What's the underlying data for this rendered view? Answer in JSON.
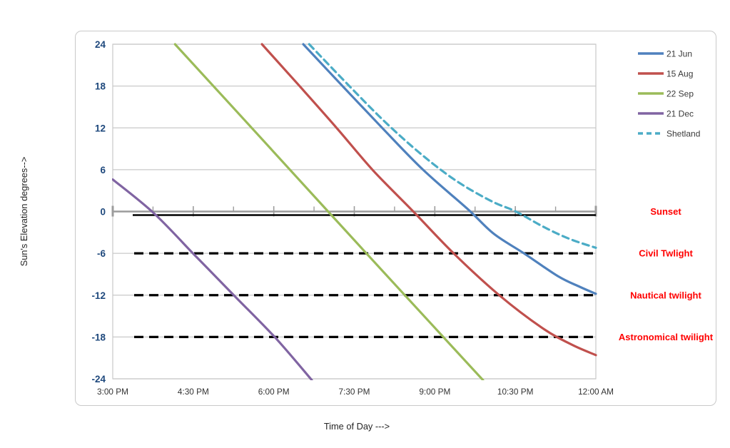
{
  "chart": {
    "y_axis_title": "Sun's Elevation degrees-->",
    "x_axis_title": "Time of Day --->",
    "y_tick_labels": [
      "24",
      "18",
      "12",
      "6",
      "0",
      "-6",
      "-12",
      "-18",
      "-24"
    ],
    "x_tick_labels": [
      "3:00 PM",
      "4:30 PM",
      "6:00 PM",
      "7:30 PM",
      "9:00 PM",
      "10:30 PM",
      "12:00 AM"
    ],
    "colors": {
      "y_tick_label": "#1F497D",
      "x_tick_label": "#333333",
      "axis_line": "#9C9C9C",
      "gridline": "#C9C9C9",
      "annotation": "#FF0000",
      "frame_border": "#C9C9C9"
    }
  },
  "chart_data": {
    "type": "line",
    "title": "",
    "xlabel": "Time of Day --->",
    "ylabel": "Sun's Elevation degrees-->",
    "x_unit": "hours after 3:00 PM",
    "xlim": [
      0,
      9
    ],
    "ylim": [
      -24,
      24
    ],
    "x_tick_positions": [
      0,
      1.5,
      3,
      4.5,
      6,
      7.5,
      9
    ],
    "x_tick_times": [
      "3:00 PM",
      "4:30 PM",
      "6:00 PM",
      "7:30 PM",
      "9:00 PM",
      "10:30 PM",
      "12:00 AM"
    ],
    "y_ticks": [
      24,
      18,
      12,
      6,
      0,
      -6,
      -12,
      -18,
      -24
    ],
    "grid": "horizontal",
    "legend_position": "top-right",
    "series": [
      {
        "name": "21 Jun",
        "color": "#4F81BD",
        "dash": null,
        "points": [
          [
            3.55,
            24
          ],
          [
            4.28,
            18
          ],
          [
            5.02,
            12
          ],
          [
            5.78,
            6
          ],
          [
            6.62,
            0.3
          ],
          [
            7.1,
            -3.2
          ],
          [
            7.66,
            -6
          ],
          [
            8.3,
            -9.3
          ],
          [
            8.7,
            -10.8
          ],
          [
            9,
            -11.8
          ]
        ]
      },
      {
        "name": "15 Aug",
        "color": "#C0504D",
        "dash": null,
        "points": [
          [
            2.78,
            24
          ],
          [
            3.48,
            18
          ],
          [
            4.17,
            12
          ],
          [
            4.85,
            5.9
          ],
          [
            5.6,
            0
          ],
          [
            6.35,
            -6
          ],
          [
            7.2,
            -12
          ],
          [
            8.0,
            -16.7
          ],
          [
            8.55,
            -19.1
          ],
          [
            9,
            -20.6
          ]
        ]
      },
      {
        "name": "22 Sep",
        "color": "#9BBB59",
        "dash": null,
        "points": [
          [
            1.16,
            24
          ],
          [
            2.6,
            11.9
          ],
          [
            4.0,
            0.1
          ],
          [
            5.5,
            -12.5
          ],
          [
            6.9,
            -24.2
          ]
        ]
      },
      {
        "name": "21 Dec",
        "color": "#8064A2",
        "dash": null,
        "points": [
          [
            0,
            4.6
          ],
          [
            0.76,
            -0.2
          ],
          [
            1.52,
            -6.2
          ],
          [
            2.28,
            -12.2
          ],
          [
            3.04,
            -18.2
          ],
          [
            3.71,
            -24.2
          ]
        ]
      },
      {
        "name": "Shetland",
        "color": "#4BACC6",
        "dash": "9 6",
        "points": [
          [
            3.66,
            24
          ],
          [
            4.42,
            17.9
          ],
          [
            5.08,
            12.8
          ],
          [
            5.75,
            8.2
          ],
          [
            6.4,
            4.4
          ],
          [
            7.05,
            1.5
          ],
          [
            7.51,
            0
          ],
          [
            8.0,
            -2.1
          ],
          [
            8.5,
            -3.9
          ],
          [
            9,
            -5.2
          ]
        ]
      }
    ],
    "reference_lines": [
      {
        "label": "Sunset",
        "value": 0,
        "style": "solid",
        "color": "#000000"
      },
      {
        "label": "Civil Twlight",
        "value": -6,
        "style": "dashed",
        "color": "#000000"
      },
      {
        "label": "Nautical twilight",
        "value": -12,
        "style": "dashed",
        "color": "#000000"
      },
      {
        "label": "Astronomical twilight",
        "value": -18,
        "style": "dashed",
        "color": "#000000"
      }
    ]
  }
}
